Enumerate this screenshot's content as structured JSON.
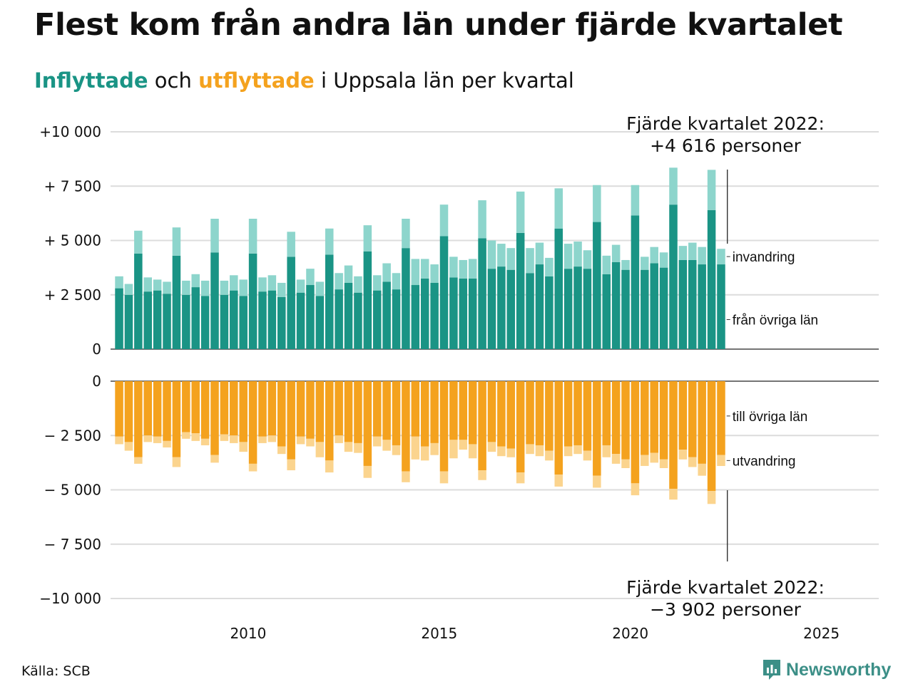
{
  "title": "Flest kom från andra län under fjärde kvartalet",
  "subtitle": {
    "in_word": "Inflyttade",
    "and_word": "och",
    "out_word": "utflyttade",
    "rest": "i Uppsala län per kvartal"
  },
  "source": "Källa: SCB",
  "brand": "Newsworthy",
  "colors": {
    "in_dark": "#1a9485",
    "in_light": "#8dd5cc",
    "out_dark": "#f4a21e",
    "out_light": "#fbd48e",
    "grid": "#dcdcdc",
    "axis": "#222222",
    "brand": "#3c8f87"
  },
  "chart_data": {
    "type": "bar",
    "stacked": true,
    "x": {
      "unit": "quarter",
      "start": "2007 Q1",
      "end": "2022 Q4",
      "range": [
        2006.9,
        2027.0
      ],
      "ticks": [
        "2010",
        "2015",
        "2020",
        "2025"
      ]
    },
    "top_panel": {
      "ylim": [
        0,
        10000
      ],
      "ticks": [
        0,
        2500,
        5000,
        7500,
        10000
      ],
      "tick_labels": [
        "0",
        "+ 2 500",
        "+ 5 000",
        "+ 7 500",
        "+10 000"
      ],
      "series": [
        {
          "name": "från övriga län",
          "values": [
            2800,
            2500,
            4400,
            2650,
            2700,
            2550,
            4300,
            2500,
            2850,
            2450,
            4450,
            2500,
            2700,
            2450,
            4400,
            2650,
            2700,
            2400,
            4250,
            2600,
            2950,
            2450,
            4350,
            2750,
            3050,
            2600,
            4500,
            2700,
            3100,
            2750,
            4650,
            2950,
            3250,
            3050,
            5200,
            3300,
            3250,
            3250,
            5100,
            3700,
            3800,
            3650,
            5350,
            3500,
            3900,
            3350,
            5550,
            3700,
            3800,
            3700,
            5850,
            3450,
            4000,
            3650,
            6150,
            3650,
            3950,
            3750,
            6650,
            4100,
            4100,
            3900,
            6400,
            3900
          ]
        },
        {
          "name": "invandring",
          "values": [
            550,
            500,
            1050,
            650,
            500,
            550,
            1300,
            650,
            600,
            700,
            1550,
            650,
            700,
            750,
            1600,
            650,
            700,
            650,
            1150,
            600,
            750,
            650,
            1200,
            750,
            800,
            750,
            1200,
            700,
            850,
            750,
            1350,
            1200,
            900,
            850,
            1450,
            950,
            850,
            900,
            1750,
            1300,
            1050,
            1000,
            1900,
            1150,
            1000,
            850,
            1850,
            1150,
            1150,
            850,
            1700,
            850,
            800,
            450,
            1400,
            600,
            750,
            700,
            1700,
            650,
            800,
            800,
            1850,
            716
          ]
        }
      ]
    },
    "bottom_panel": {
      "ylim": [
        -10000,
        0
      ],
      "ticks": [
        0,
        -2500,
        -5000,
        -7500,
        -10000
      ],
      "tick_labels": [
        "0",
        "− 2 500",
        "− 5 000",
        "− 7 500",
        "−10 000"
      ],
      "series": [
        {
          "name": "till övriga län",
          "values": [
            -2550,
            -2800,
            -3500,
            -2500,
            -2550,
            -2750,
            -3500,
            -2350,
            -2400,
            -2650,
            -3400,
            -2450,
            -2500,
            -2800,
            -3800,
            -2550,
            -2500,
            -3000,
            -3600,
            -2550,
            -2650,
            -2800,
            -3650,
            -2500,
            -2800,
            -2850,
            -3900,
            -2550,
            -2700,
            -2950,
            -4150,
            -2550,
            -3000,
            -2850,
            -4150,
            -2700,
            -2700,
            -2900,
            -4100,
            -2800,
            -3000,
            -3100,
            -4200,
            -2900,
            -2950,
            -3200,
            -4300,
            -3000,
            -2950,
            -3200,
            -4350,
            -2950,
            -3350,
            -3600,
            -4700,
            -3400,
            -3300,
            -3600,
            -4950,
            -3150,
            -3500,
            -3800,
            -5050,
            -3400
          ]
        },
        {
          "name": "utvandring",
          "values": [
            -350,
            -400,
            -300,
            -300,
            -300,
            -300,
            -450,
            -300,
            -350,
            -300,
            -350,
            -300,
            -350,
            -450,
            -350,
            -300,
            -300,
            -350,
            -500,
            -350,
            -350,
            -700,
            -550,
            -350,
            -450,
            -450,
            -550,
            -450,
            -500,
            -450,
            -500,
            -1050,
            -650,
            -550,
            -550,
            -850,
            -450,
            -650,
            -450,
            -450,
            -450,
            -400,
            -500,
            -450,
            -500,
            -450,
            -550,
            -450,
            -400,
            -450,
            -550,
            -550,
            -450,
            -400,
            -550,
            -500,
            -450,
            -400,
            -500,
            -450,
            -450,
            -550,
            -600,
            -502
          ]
        }
      ]
    },
    "annotations": {
      "top": "Fjärde kvartalet 2022:\n+4 616 personer",
      "bottom": "Fjärde kvartalet 2022:\n−3 902 personer"
    }
  }
}
